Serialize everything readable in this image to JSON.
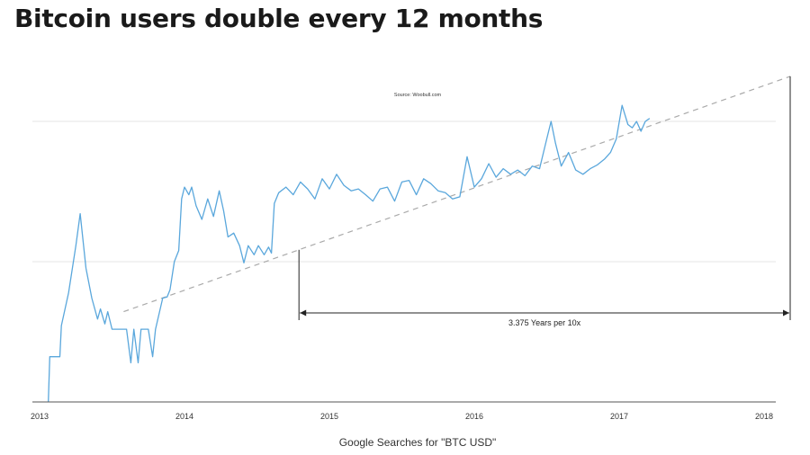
{
  "header": {
    "title": "Bitcoin users double every 12 months"
  },
  "chart_data": {
    "type": "line",
    "source": "Source: Woobull.com",
    "xlabel": "Google Searches for \"BTC USD\"",
    "x_ticks": [
      "2013",
      "2014",
      "2015",
      "2016",
      "2017",
      "2018"
    ],
    "xlim": [
      2013.0,
      2018.0
    ],
    "y_scale": "log",
    "ylim": [
      1,
      100
    ],
    "grid": {
      "horizontal": true,
      "vertical": false
    },
    "series": [
      {
        "values": [
          [
            2013.06,
            1
          ],
          [
            2013.07,
            2.1
          ],
          [
            2013.14,
            2.1
          ],
          [
            2013.15,
            3.5
          ],
          [
            2013.2,
            6
          ],
          [
            2013.25,
            13
          ],
          [
            2013.28,
            22
          ],
          [
            2013.32,
            9
          ],
          [
            2013.36,
            5.5
          ],
          [
            2013.4,
            3.9
          ],
          [
            2013.42,
            4.6
          ],
          [
            2013.45,
            3.6
          ],
          [
            2013.47,
            4.4
          ],
          [
            2013.5,
            3.3
          ],
          [
            2013.55,
            3.3
          ],
          [
            2013.6,
            3.3
          ],
          [
            2013.63,
            1.9
          ],
          [
            2013.65,
            3.3
          ],
          [
            2013.68,
            1.9
          ],
          [
            2013.7,
            3.3
          ],
          [
            2013.75,
            3.3
          ],
          [
            2013.78,
            2.1
          ],
          [
            2013.8,
            3.3
          ],
          [
            2013.85,
            5.5
          ],
          [
            2013.88,
            5.6
          ],
          [
            2013.9,
            6.3
          ],
          [
            2013.93,
            10
          ],
          [
            2013.96,
            12
          ],
          [
            2013.98,
            28
          ],
          [
            2014.0,
            34
          ],
          [
            2014.03,
            30
          ],
          [
            2014.05,
            34
          ],
          [
            2014.08,
            25
          ],
          [
            2014.12,
            20
          ],
          [
            2014.16,
            28
          ],
          [
            2014.2,
            21
          ],
          [
            2014.24,
            32
          ],
          [
            2014.27,
            23
          ],
          [
            2014.3,
            15
          ],
          [
            2014.34,
            16
          ],
          [
            2014.38,
            13
          ],
          [
            2014.41,
            9.8
          ],
          [
            2014.44,
            13
          ],
          [
            2014.48,
            11.2
          ],
          [
            2014.51,
            13
          ],
          [
            2014.55,
            11.2
          ],
          [
            2014.58,
            12.7
          ],
          [
            2014.6,
            11.5
          ],
          [
            2014.62,
            26
          ],
          [
            2014.65,
            31
          ],
          [
            2014.7,
            34
          ],
          [
            2014.75,
            30
          ],
          [
            2014.8,
            37
          ],
          [
            2014.85,
            33
          ],
          [
            2014.9,
            28
          ],
          [
            2014.95,
            39
          ],
          [
            2015.0,
            33
          ],
          [
            2015.05,
            42
          ],
          [
            2015.1,
            35
          ],
          [
            2015.15,
            32
          ],
          [
            2015.2,
            33
          ],
          [
            2015.25,
            30
          ],
          [
            2015.3,
            27
          ],
          [
            2015.35,
            33
          ],
          [
            2015.4,
            34
          ],
          [
            2015.45,
            27
          ],
          [
            2015.5,
            37
          ],
          [
            2015.55,
            38
          ],
          [
            2015.6,
            30
          ],
          [
            2015.65,
            39
          ],
          [
            2015.7,
            36
          ],
          [
            2015.75,
            32
          ],
          [
            2015.8,
            31
          ],
          [
            2015.85,
            28
          ],
          [
            2015.9,
            29
          ],
          [
            2015.95,
            56
          ],
          [
            2016.0,
            34
          ],
          [
            2016.05,
            39
          ],
          [
            2016.1,
            50
          ],
          [
            2016.15,
            40
          ],
          [
            2016.2,
            46
          ],
          [
            2016.25,
            42
          ],
          [
            2016.3,
            45
          ],
          [
            2016.35,
            41
          ],
          [
            2016.4,
            48
          ],
          [
            2016.45,
            46
          ],
          [
            2016.5,
            75
          ],
          [
            2016.53,
            100
          ],
          [
            2016.56,
            70
          ],
          [
            2016.6,
            48
          ],
          [
            2016.65,
            60
          ],
          [
            2016.7,
            45
          ],
          [
            2016.75,
            42
          ],
          [
            2016.8,
            46
          ],
          [
            2016.85,
            49
          ],
          [
            2016.9,
            54
          ],
          [
            2016.94,
            60
          ],
          [
            2016.98,
            75
          ],
          [
            2017.02,
            130
          ],
          [
            2017.06,
            95
          ],
          [
            2017.09,
            90
          ],
          [
            2017.12,
            100
          ],
          [
            2017.15,
            85
          ],
          [
            2017.18,
            100
          ],
          [
            2017.21,
            105
          ]
        ]
      }
    ],
    "trend_line": {
      "from": [
        2013.58,
        4.4
      ],
      "to": [
        2018.0,
        180
      ]
    },
    "annotation": {
      "label": "3.375 Years per 10x",
      "x_from": 2014.79,
      "x_to": 2018.0
    }
  }
}
